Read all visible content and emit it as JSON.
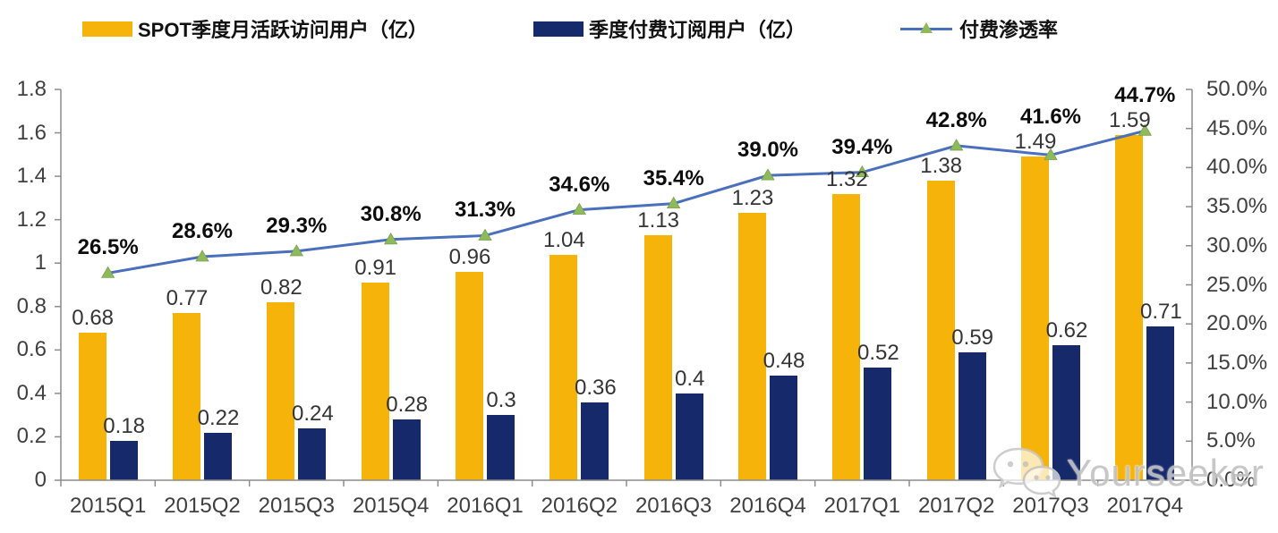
{
  "legend": {
    "items": [
      {
        "label": "SPOT季度月活跃访问用户（亿）",
        "swatch": "bar",
        "color": "#F6B40B"
      },
      {
        "label": "季度付费订阅用户（亿）",
        "swatch": "bar",
        "color": "#16296B"
      },
      {
        "label": "付费渗透率",
        "swatch": "line",
        "line_color": "#4A6FBD",
        "marker_color": "#8FBA5C"
      }
    ]
  },
  "chart_data": {
    "type": "bar",
    "subtype": "grouped-bars-with-line",
    "categories": [
      "2015Q1",
      "2015Q2",
      "2015Q3",
      "2015Q4",
      "2016Q1",
      "2016Q2",
      "2016Q3",
      "2016Q4",
      "2017Q1",
      "2017Q2",
      "2017Q3",
      "2017Q4"
    ],
    "series": [
      {
        "name": "SPOT季度月活跃访问用户（亿）",
        "type": "bar",
        "axis": "left",
        "color": "#F6B40B",
        "values": [
          0.68,
          0.77,
          0.82,
          0.91,
          0.96,
          1.04,
          1.13,
          1.23,
          1.32,
          1.38,
          1.49,
          1.59
        ],
        "labels": [
          "0.68",
          "0.77",
          "0.82",
          "0.91",
          "0.96",
          "1.04",
          "1.13",
          "1.23",
          "1.32",
          "1.38",
          "1.49",
          "1.59"
        ]
      },
      {
        "name": "季度付费订阅用户（亿）",
        "type": "bar",
        "axis": "left",
        "color": "#16296B",
        "values": [
          0.18,
          0.22,
          0.24,
          0.28,
          0.3,
          0.36,
          0.4,
          0.48,
          0.52,
          0.59,
          0.62,
          0.71
        ],
        "labels": [
          "0.18",
          "0.22",
          "0.24",
          "0.28",
          "0.3",
          "0.36",
          "0.4",
          "0.48",
          "0.52",
          "0.59",
          "0.62",
          "0.71"
        ]
      },
      {
        "name": "付费渗透率",
        "type": "line",
        "axis": "right",
        "color": "#4A6FBD",
        "marker_color": "#8FBA5C",
        "values": [
          26.5,
          28.6,
          29.3,
          30.8,
          31.3,
          34.6,
          35.4,
          39.0,
          39.4,
          42.8,
          41.6,
          44.7
        ],
        "labels": [
          "26.5%",
          "28.6%",
          "29.3%",
          "30.8%",
          "31.3%",
          "34.6%",
          "35.4%",
          "39.0%",
          "39.4%",
          "42.8%",
          "41.6%",
          "44.7%"
        ]
      }
    ],
    "y_left": {
      "min": 0,
      "max": 1.8,
      "tick_labels": [
        "0",
        "0.2",
        "0.4",
        "0.6",
        "0.8",
        "1",
        "1.2",
        "1.4",
        "1.6",
        "1.8"
      ]
    },
    "y_right": {
      "min": 0,
      "max": 50,
      "tick_labels": [
        "0.0%",
        "5.0%",
        "10.0%",
        "15.0%",
        "20.0%",
        "25.0%",
        "30.0%",
        "35.0%",
        "40.0%",
        "45.0%",
        "50.0%"
      ]
    },
    "grid": false,
    "legend_position": "top",
    "title": ""
  },
  "watermark": {
    "text": "Yourseeker",
    "icon": "wechat-icon"
  }
}
